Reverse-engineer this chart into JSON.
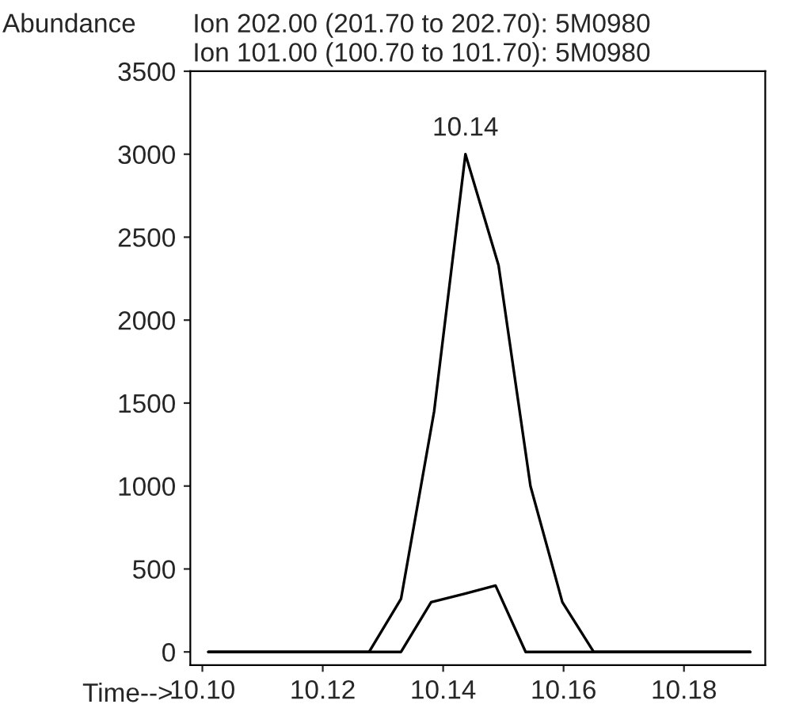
{
  "chart_data": {
    "type": "line",
    "title": "Ion 202.00 (201.70 to 202.70): 5M0980",
    "subtitle": "Ion 101.00 (100.70 to 101.70): 5M0980",
    "ylabel": "Abundance",
    "xlabel": "Time-->",
    "series": [
      {
        "color": "#000000",
        "x": [
          10.101,
          10.1277,
          10.133,
          10.1385,
          10.1437,
          10.1492,
          10.1545,
          10.1598,
          10.165,
          10.191
        ],
        "values": [
          0,
          0,
          320,
          1450,
          3000,
          2330,
          1000,
          300,
          0,
          0
        ]
      },
      {
        "color": "#000000",
        "x": [
          10.101,
          10.133,
          10.138,
          10.1435,
          10.1487,
          10.1537,
          10.191
        ],
        "values": [
          0,
          0,
          300,
          350,
          400,
          0,
          0
        ]
      }
    ],
    "annotations": [
      {
        "text": "10.14",
        "x": 10.1437,
        "y": 3000
      }
    ],
    "xlim": [
      10.098,
      10.1935
    ],
    "xticks": [
      {
        "value": 10.1,
        "label": "10.10"
      },
      {
        "value": 10.12,
        "label": "10.12"
      },
      {
        "value": 10.14,
        "label": "10.14"
      },
      {
        "value": 10.16,
        "label": "10.16"
      },
      {
        "value": 10.18,
        "label": "10.18"
      }
    ],
    "ylim": [
      -80,
      3500
    ],
    "yticks": [
      0,
      500,
      1000,
      1500,
      2000,
      2500,
      3000,
      3500
    ],
    "grid": false,
    "legend": false,
    "marker": "none",
    "line_style": "solid"
  }
}
